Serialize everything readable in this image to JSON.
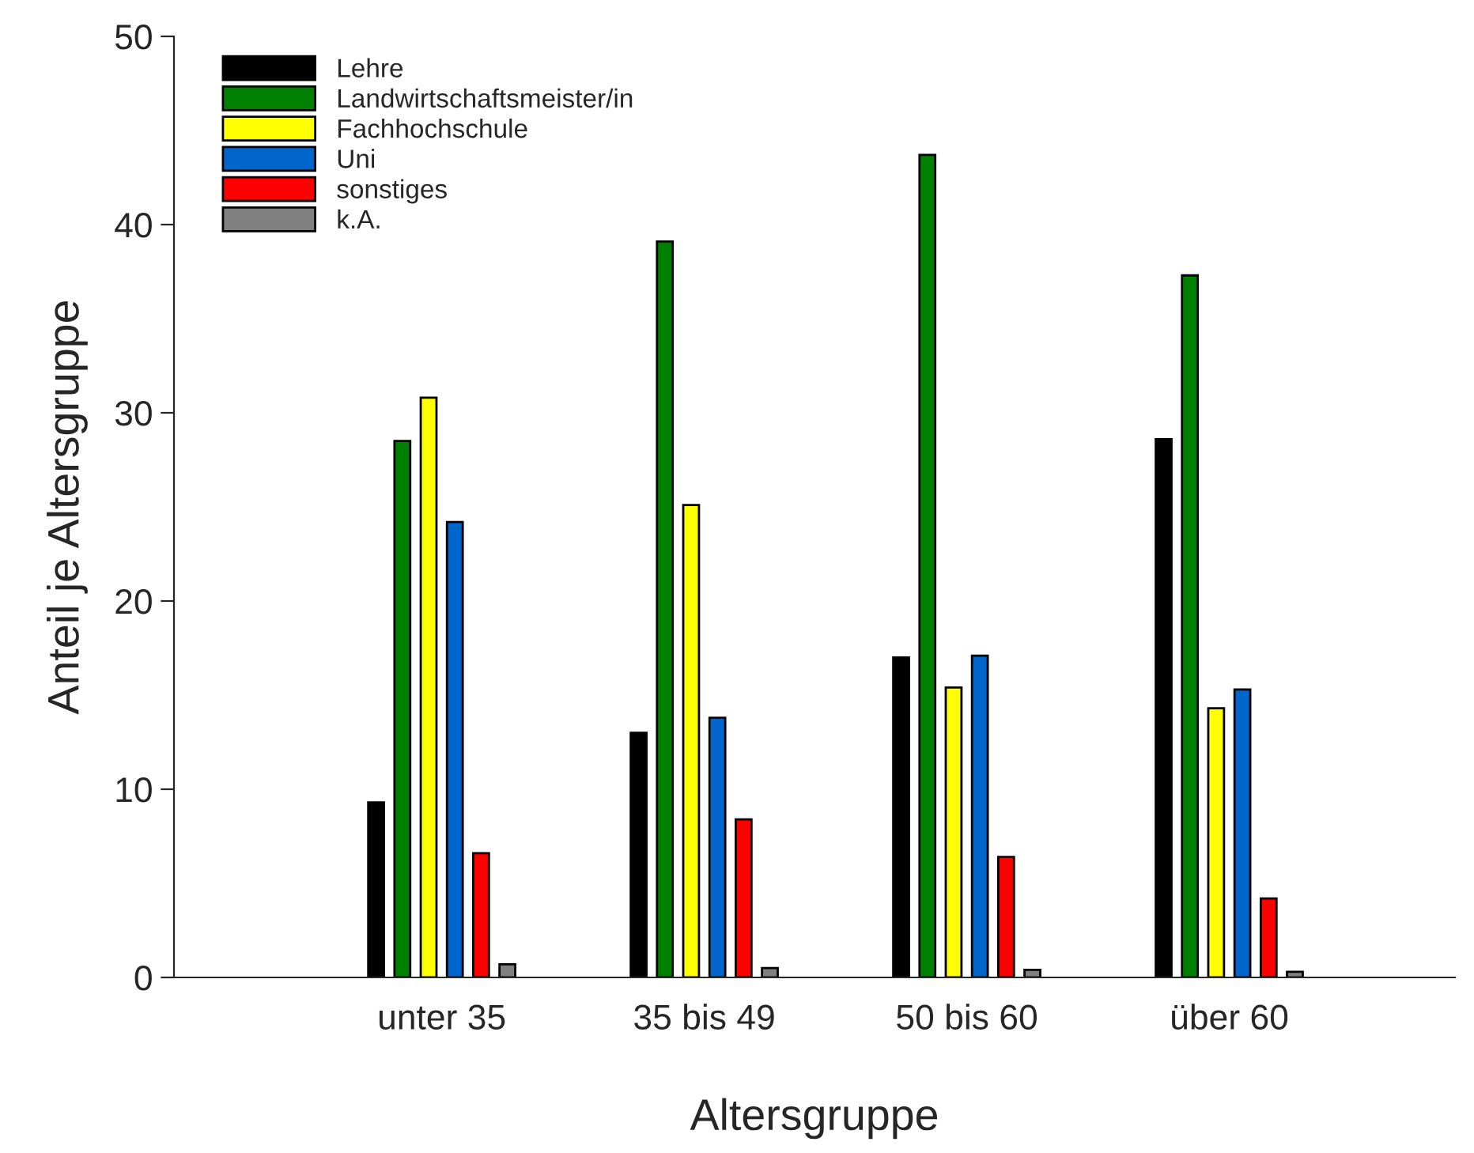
{
  "chart_data": {
    "type": "bar",
    "xlabel": "Altersgruppe",
    "ylabel": "Anteil je Altersgruppe",
    "categories": [
      "unter 35",
      "35 bis 49",
      "50 bis 60",
      "über 60"
    ],
    "series": [
      {
        "name": "Lehre",
        "color": "#000000",
        "values": [
          9.3,
          13.0,
          17.0,
          28.6
        ]
      },
      {
        "name": "Landwirtschaftsmeister/in",
        "color": "#008000",
        "values": [
          28.5,
          39.1,
          43.7,
          37.3
        ]
      },
      {
        "name": "Fachhochschule",
        "color": "#ffff00",
        "values": [
          30.8,
          25.1,
          15.4,
          14.3
        ]
      },
      {
        "name": "Uni",
        "color": "#0066cc",
        "values": [
          24.2,
          13.8,
          17.1,
          15.3
        ]
      },
      {
        "name": "sonstiges",
        "color": "#ff0000",
        "values": [
          6.6,
          8.4,
          6.4,
          4.2
        ]
      },
      {
        "name": "k.A.",
        "color": "#808080",
        "values": [
          0.7,
          0.5,
          0.4,
          0.3
        ]
      }
    ],
    "ylim": [
      0,
      50
    ],
    "yticks": [
      0,
      10,
      20,
      30,
      40,
      50
    ],
    "grid": false,
    "legend": "top left"
  }
}
